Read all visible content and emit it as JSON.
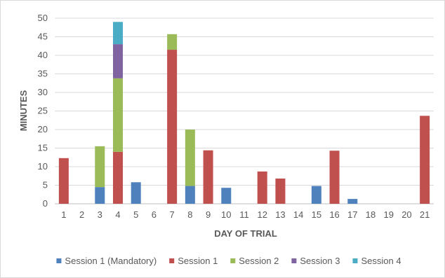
{
  "chart_data": {
    "type": "bar",
    "stacked": true,
    "xlabel": "DAY OF TRIAL",
    "ylabel": "MINUTES",
    "ylim": [
      0,
      50
    ],
    "yticks": [
      0,
      5,
      10,
      15,
      20,
      25,
      30,
      35,
      40,
      45,
      50
    ],
    "grid": true,
    "legend_position": "bottom",
    "categories": [
      "1",
      "2",
      "3",
      "4",
      "5",
      "6",
      "7",
      "8",
      "9",
      "10",
      "11",
      "12",
      "13",
      "14",
      "15",
      "16",
      "17",
      "18",
      "19",
      "20",
      "21"
    ],
    "series": [
      {
        "name": "Session 1 (Mandatory)",
        "color": "#4f81bd",
        "values": [
          0,
          0,
          4.5,
          0,
          5.8,
          0,
          0,
          4.8,
          0,
          4.3,
          0,
          0,
          0,
          0,
          4.8,
          0,
          1.3,
          0,
          0,
          0,
          0
        ]
      },
      {
        "name": "Session 1",
        "color": "#c0504d",
        "values": [
          12.3,
          0,
          0,
          14,
          0,
          0,
          41.5,
          0,
          14.4,
          0,
          0,
          8.7,
          6.8,
          0,
          0,
          14.3,
          0,
          0,
          0,
          0,
          23.7
        ]
      },
      {
        "name": "Session 2",
        "color": "#9bbb59",
        "values": [
          0,
          0,
          11,
          19.8,
          0,
          0,
          4.2,
          15.2,
          0,
          0,
          0,
          0,
          0,
          0,
          0,
          0,
          0,
          0,
          0,
          0,
          0
        ]
      },
      {
        "name": "Session 3",
        "color": "#8064a2",
        "values": [
          0,
          0,
          0,
          9.2,
          0,
          0,
          0,
          0,
          0,
          0,
          0,
          0,
          0,
          0,
          0,
          0,
          0,
          0,
          0,
          0,
          0
        ]
      },
      {
        "name": "Session 4",
        "color": "#4bacc6",
        "values": [
          0,
          0,
          0,
          6,
          0,
          0,
          0,
          0,
          0,
          0,
          0,
          0,
          0,
          0,
          0,
          0,
          0,
          0,
          0,
          0,
          0
        ]
      }
    ]
  }
}
